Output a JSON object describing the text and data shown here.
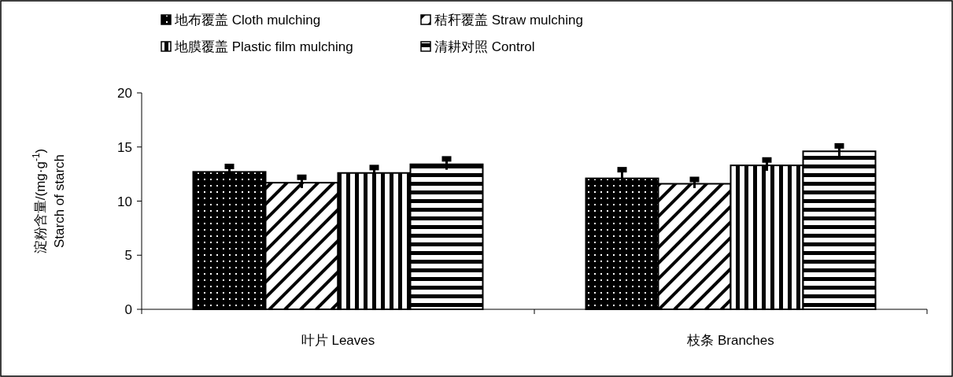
{
  "chart_data": {
    "type": "bar",
    "ylabel": "淀粉含量/(mg·g$^{-1}$)\nStarch of starch",
    "categories": [
      "叶片 Leaves",
      "枝条 Branches"
    ],
    "series": [
      {
        "name": "地布覆盖 Cloth mulching",
        "color": "#000000",
        "values": [
          12.7,
          12.1
        ],
        "errors": [
          0.5,
          0.8
        ]
      },
      {
        "name": "秸秆覆盖 Straw mulching",
        "color": "#000000",
        "values": [
          11.7,
          11.6
        ],
        "errors": [
          0.5,
          0.4
        ]
      },
      {
        "name": "地膜覆盖 Plastic film mulching",
        "color": "#000000",
        "values": [
          12.6,
          13.3
        ],
        "errors": [
          0.5,
          0.5
        ]
      },
      {
        "name": "清耕对照 Control",
        "color": "#000000",
        "values": [
          13.4,
          14.6
        ],
        "errors": [
          0.5,
          0.5
        ]
      }
    ],
    "ylim": [
      0,
      20
    ],
    "yticks": [
      0,
      5,
      10,
      15,
      20
    ],
    "grid": false,
    "legend": "top"
  }
}
